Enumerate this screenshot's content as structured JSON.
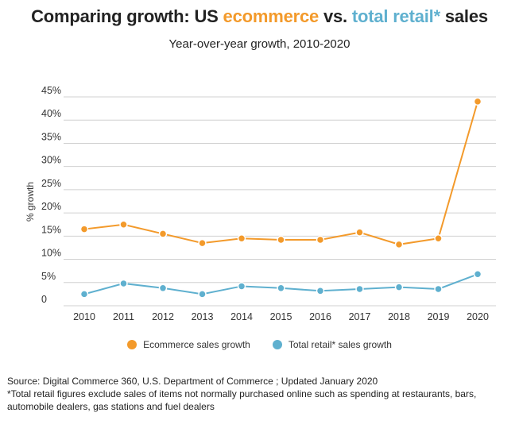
{
  "header": {
    "title_prefix": "Comparing growth: US ",
    "title_ecom": "ecommerce",
    "title_mid": " vs. ",
    "title_retail": "total retail*",
    "title_suffix": " sales",
    "subtitle": "Year-over-year growth, 2010-2020"
  },
  "colors": {
    "ecommerce": "#f39a2b",
    "retail": "#5fb0cf",
    "grid": "#d0d0d0"
  },
  "chart_data": {
    "type": "line",
    "title": "Comparing growth: US ecommerce vs. total retail* sales",
    "subtitle": "Year-over-year growth, 2010-2020",
    "xlabel": "",
    "ylabel": "% growth",
    "categories": [
      "2010",
      "2011",
      "2012",
      "2013",
      "2014",
      "2015",
      "2016",
      "2017",
      "2018",
      "2019",
      "2020"
    ],
    "yticks": [
      "0",
      "5%",
      "10%",
      "15%",
      "20%",
      "25%",
      "30%",
      "35%",
      "40%",
      "45%"
    ],
    "ylim": [
      0,
      45
    ],
    "grid": true,
    "legend_position": "bottom",
    "series": [
      {
        "name": "Ecommerce sales growth",
        "values": [
          16.5,
          17.5,
          15.5,
          13.5,
          14.5,
          14.2,
          14.2,
          15.8,
          13.2,
          14.5,
          44.0
        ]
      },
      {
        "name": "Total retail* sales growth",
        "values": [
          2.5,
          4.8,
          3.8,
          2.5,
          4.2,
          3.8,
          3.2,
          3.6,
          4.0,
          3.6,
          6.8
        ]
      }
    ]
  },
  "legend": {
    "ecommerce": "Ecommerce sales growth",
    "retail": "Total retail* sales growth"
  },
  "footer": {
    "source": "Source: Digital Commerce 360,  U.S. Department of Commerce ; Updated January 2020",
    "note": "*Total retail figures exclude sales of items not normally purchased online such as spending at restaurants, bars, automobile dealers, gas stations and fuel dealers"
  }
}
